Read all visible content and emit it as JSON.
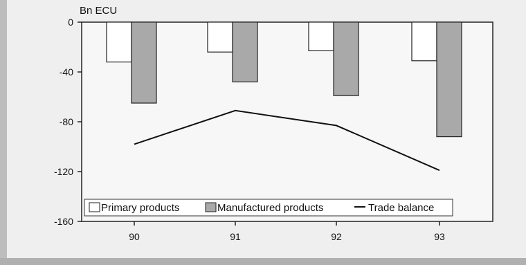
{
  "chart_data": {
    "type": "bar",
    "unit_label": "Bn ECU",
    "categories": [
      "90",
      "91",
      "92",
      "93"
    ],
    "ylim": [
      -160,
      0
    ],
    "yticks": [
      0,
      -40,
      -80,
      -120,
      -160
    ],
    "series": [
      {
        "name": "Primary products",
        "kind": "bar",
        "color": "#ffffff",
        "values": [
          -32,
          -24,
          -23,
          -31
        ]
      },
      {
        "name": "Manufactured products",
        "kind": "bar",
        "color": "#a9a9a9",
        "values": [
          -65,
          -48,
          -59,
          -92
        ]
      },
      {
        "name": "Trade balance",
        "kind": "line",
        "color": "#111111",
        "values": [
          -98,
          -71,
          -83,
          -119
        ]
      }
    ],
    "legend_position": "bottom",
    "grid": false
  }
}
